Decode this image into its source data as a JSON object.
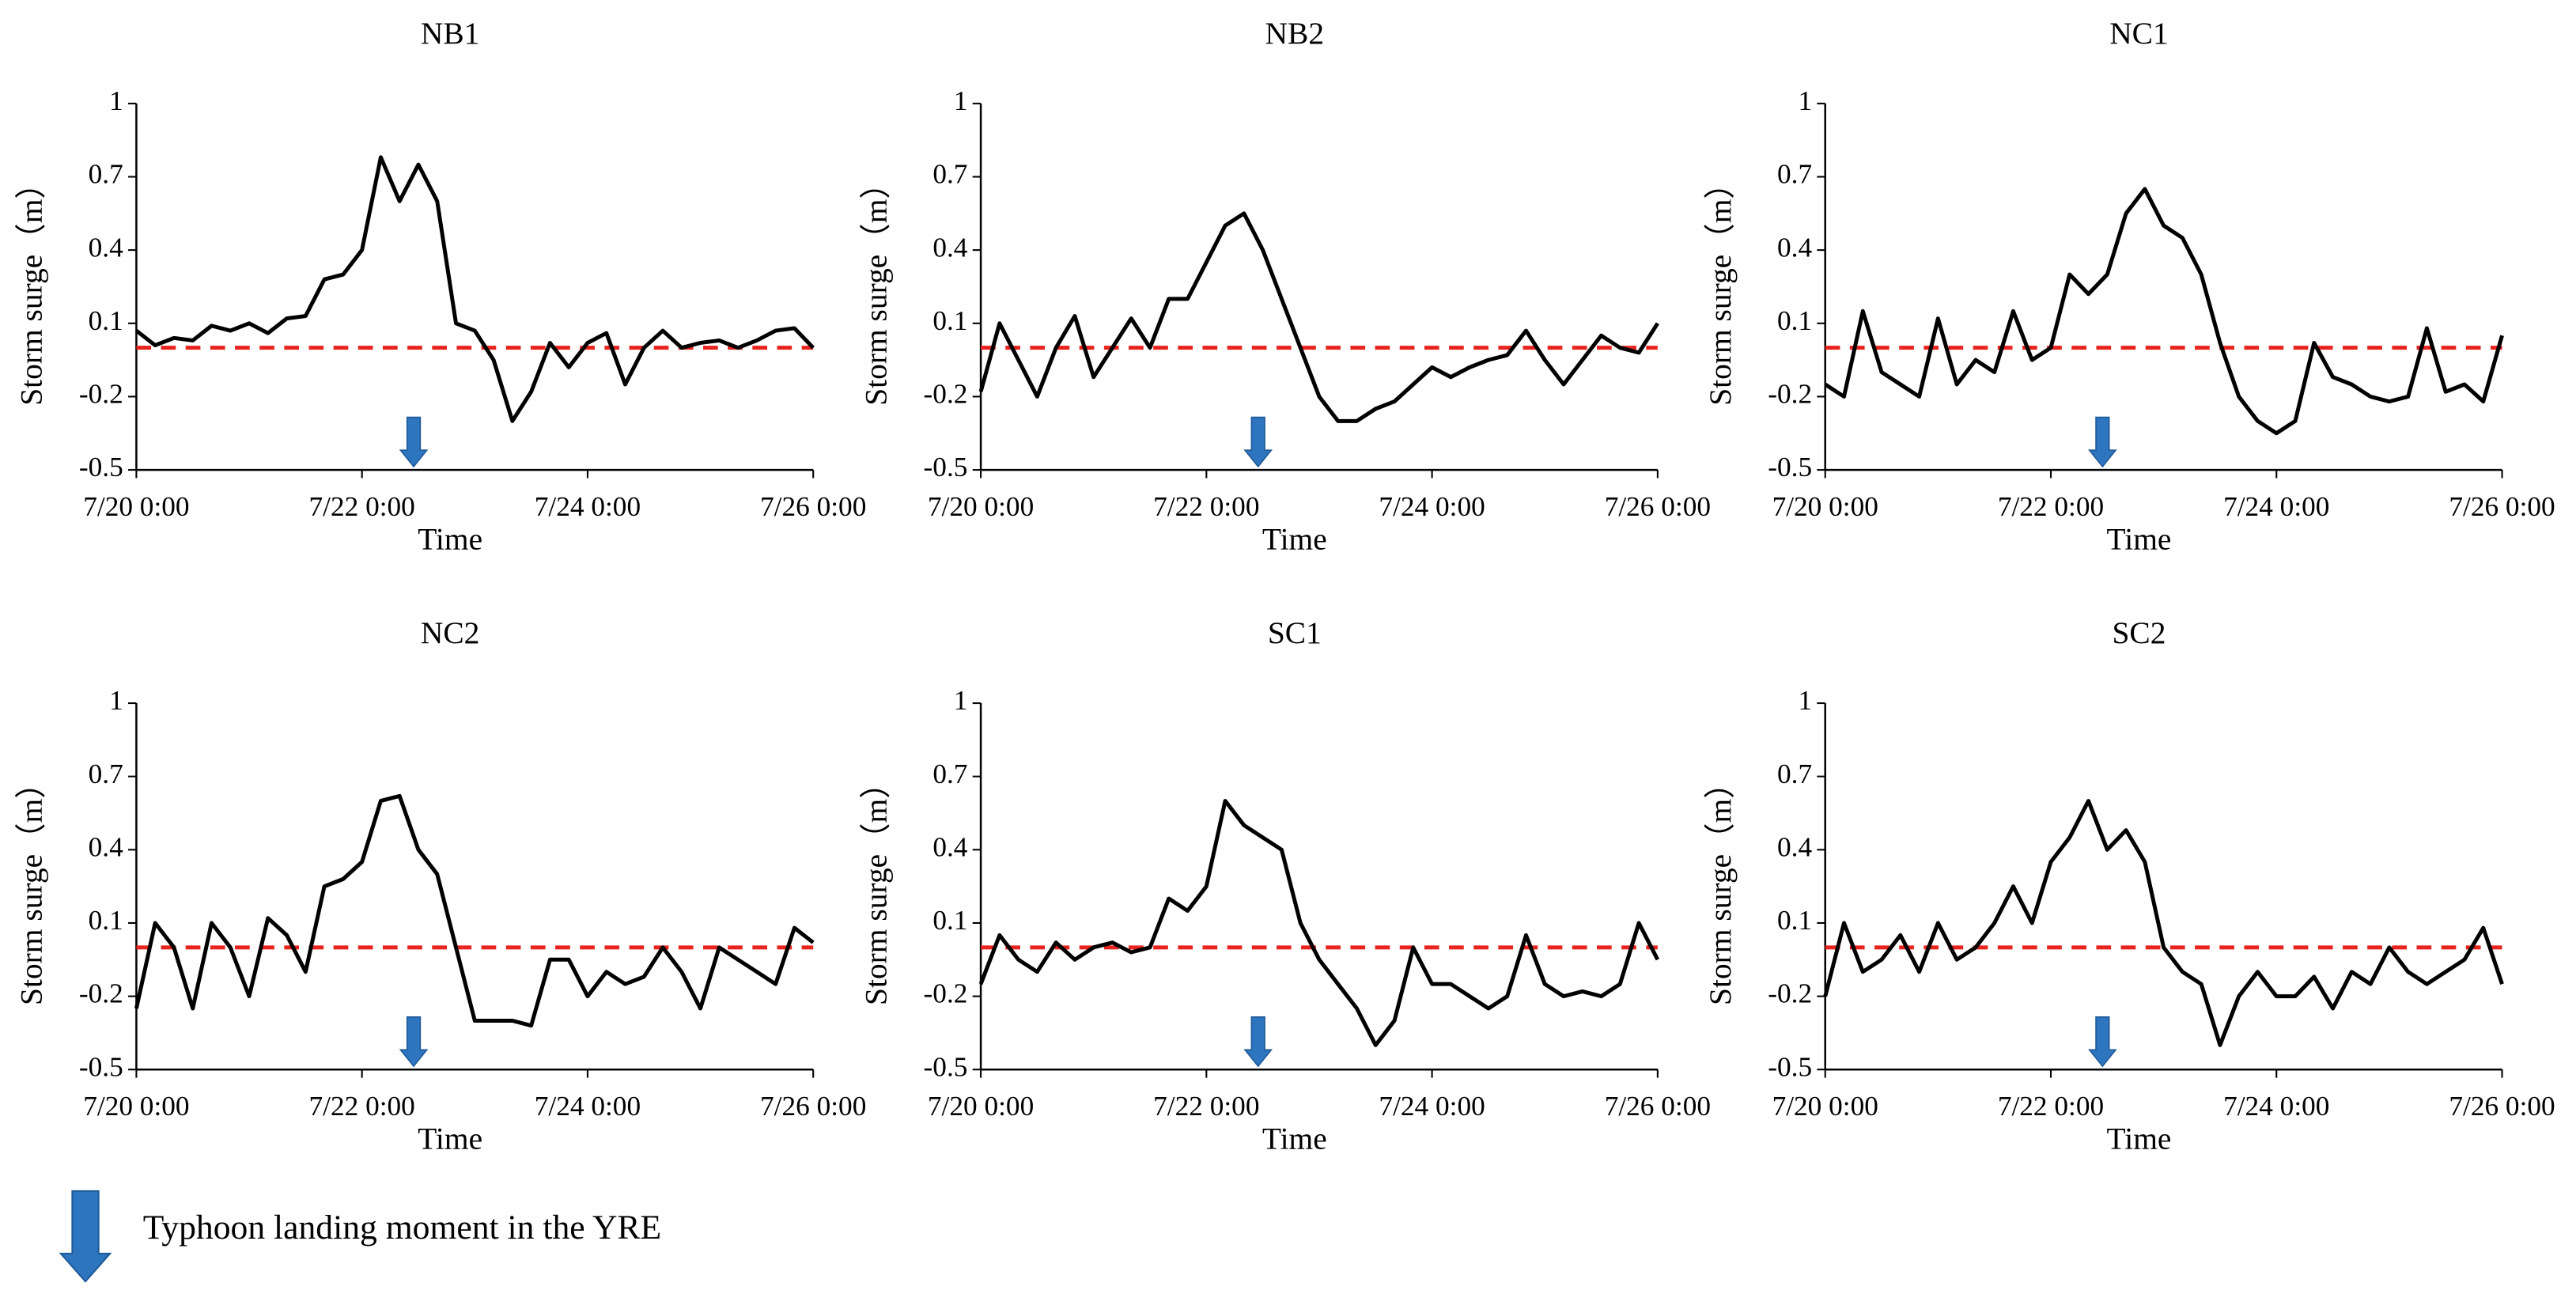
{
  "legend": {
    "label": "Typhoon landing moment in the YRE"
  },
  "chart_data": [
    {
      "type": "line",
      "title": "NB1",
      "x_label": "Time",
      "y_label": "Storm surge（m）",
      "xlim": [
        0,
        144
      ],
      "xticks": [
        {
          "value": 0,
          "label": "7/20 0:00"
        },
        {
          "value": 48,
          "label": "7/22 0:00"
        },
        {
          "value": 96,
          "label": "7/24 0:00"
        },
        {
          "value": 144,
          "label": "7/26 0:00"
        }
      ],
      "ylim": [
        -0.5,
        1
      ],
      "yticks": [
        -0.5,
        -0.2,
        0.1,
        0.4,
        0.7,
        1
      ],
      "reference_y": 0,
      "reference_color": "#e8231e",
      "arrow_x": 59,
      "arrow_color": "#2e75c0",
      "series": [
        {
          "name": "NB1",
          "color": "#000000",
          "x": [
            0,
            4,
            8,
            12,
            16,
            20,
            24,
            28,
            32,
            36,
            40,
            44,
            48,
            52,
            56,
            60,
            64,
            68,
            72,
            76,
            80,
            84,
            88,
            92,
            96,
            100,
            104,
            108,
            112,
            116,
            120,
            124,
            128,
            132,
            136,
            140,
            144
          ],
          "values": [
            0.07,
            0.01,
            0.04,
            0.03,
            0.09,
            0.07,
            0.1,
            0.06,
            0.12,
            0.13,
            0.28,
            0.3,
            0.4,
            0.78,
            0.6,
            0.75,
            0.6,
            0.1,
            0.07,
            -0.05,
            -0.3,
            -0.18,
            0.02,
            -0.08,
            0.02,
            0.06,
            -0.15,
            0.0,
            0.07,
            0.0,
            0.02,
            0.03,
            0.0,
            0.03,
            0.07,
            0.08,
            0.0
          ]
        }
      ]
    },
    {
      "type": "line",
      "title": "NB2",
      "x_label": "Time",
      "y_label": "Storm surge（m）",
      "xlim": [
        0,
        144
      ],
      "xticks": [
        {
          "value": 0,
          "label": "7/20 0:00"
        },
        {
          "value": 48,
          "label": "7/22 0:00"
        },
        {
          "value": 96,
          "label": "7/24 0:00"
        },
        {
          "value": 144,
          "label": "7/26 0:00"
        }
      ],
      "ylim": [
        -0.5,
        1
      ],
      "yticks": [
        -0.5,
        -0.2,
        0.1,
        0.4,
        0.7,
        1
      ],
      "reference_y": 0,
      "reference_color": "#e8231e",
      "arrow_x": 59,
      "arrow_color": "#2e75c0",
      "series": [
        {
          "name": "NB2",
          "color": "#000000",
          "x": [
            0,
            4,
            8,
            12,
            16,
            20,
            24,
            28,
            32,
            36,
            40,
            44,
            48,
            52,
            56,
            60,
            64,
            68,
            72,
            76,
            80,
            84,
            88,
            92,
            96,
            100,
            104,
            108,
            112,
            116,
            120,
            124,
            128,
            132,
            136,
            140,
            144
          ],
          "values": [
            -0.18,
            0.1,
            -0.05,
            -0.2,
            0.0,
            0.13,
            -0.12,
            0.0,
            0.12,
            0.0,
            0.2,
            0.2,
            0.35,
            0.5,
            0.55,
            0.4,
            0.2,
            0.0,
            -0.2,
            -0.3,
            -0.3,
            -0.25,
            -0.22,
            -0.15,
            -0.08,
            -0.12,
            -0.08,
            -0.05,
            -0.03,
            0.07,
            -0.05,
            -0.15,
            -0.05,
            0.05,
            0.0,
            -0.02,
            0.1
          ]
        }
      ]
    },
    {
      "type": "line",
      "title": "NC1",
      "x_label": "Time",
      "y_label": "Storm surge（m）",
      "xlim": [
        0,
        144
      ],
      "xticks": [
        {
          "value": 0,
          "label": "7/20 0:00"
        },
        {
          "value": 48,
          "label": "7/22 0:00"
        },
        {
          "value": 96,
          "label": "7/24 0:00"
        },
        {
          "value": 144,
          "label": "7/26 0:00"
        }
      ],
      "ylim": [
        -0.5,
        1
      ],
      "yticks": [
        -0.5,
        -0.2,
        0.1,
        0.4,
        0.7,
        1
      ],
      "reference_y": 0,
      "reference_color": "#e8231e",
      "arrow_x": 59,
      "arrow_color": "#2e75c0",
      "series": [
        {
          "name": "NC1",
          "color": "#000000",
          "x": [
            0,
            4,
            8,
            12,
            16,
            20,
            24,
            28,
            32,
            36,
            40,
            44,
            48,
            52,
            56,
            60,
            64,
            68,
            72,
            76,
            80,
            84,
            88,
            92,
            96,
            100,
            104,
            108,
            112,
            116,
            120,
            124,
            128,
            132,
            136,
            140,
            144
          ],
          "values": [
            -0.15,
            -0.2,
            0.15,
            -0.1,
            -0.15,
            -0.2,
            0.12,
            -0.15,
            -0.05,
            -0.1,
            0.15,
            -0.05,
            0.0,
            0.3,
            0.22,
            0.3,
            0.55,
            0.65,
            0.5,
            0.45,
            0.3,
            0.02,
            -0.2,
            -0.3,
            -0.35,
            -0.3,
            0.02,
            -0.12,
            -0.15,
            -0.2,
            -0.22,
            -0.2,
            0.08,
            -0.18,
            -0.15,
            -0.22,
            0.05
          ]
        }
      ]
    },
    {
      "type": "line",
      "title": "NC2",
      "x_label": "Time",
      "y_label": "Storm surge（m）",
      "xlim": [
        0,
        144
      ],
      "xticks": [
        {
          "value": 0,
          "label": "7/20 0:00"
        },
        {
          "value": 48,
          "label": "7/22 0:00"
        },
        {
          "value": 96,
          "label": "7/24 0:00"
        },
        {
          "value": 144,
          "label": "7/26 0:00"
        }
      ],
      "ylim": [
        -0.5,
        1
      ],
      "yticks": [
        -0.5,
        -0.2,
        0.1,
        0.4,
        0.7,
        1
      ],
      "reference_y": 0,
      "reference_color": "#e8231e",
      "arrow_x": 59,
      "arrow_color": "#2e75c0",
      "series": [
        {
          "name": "NC2",
          "color": "#000000",
          "x": [
            0,
            4,
            8,
            12,
            16,
            20,
            24,
            28,
            32,
            36,
            40,
            44,
            48,
            52,
            56,
            60,
            64,
            68,
            72,
            76,
            80,
            84,
            88,
            92,
            96,
            100,
            104,
            108,
            112,
            116,
            120,
            124,
            128,
            132,
            136,
            140,
            144
          ],
          "values": [
            -0.25,
            0.1,
            0.0,
            -0.25,
            0.1,
            0.0,
            -0.2,
            0.12,
            0.05,
            -0.1,
            0.25,
            0.28,
            0.35,
            0.6,
            0.62,
            0.4,
            0.3,
            0.0,
            -0.3,
            -0.3,
            -0.3,
            -0.32,
            -0.05,
            -0.05,
            -0.2,
            -0.1,
            -0.15,
            -0.12,
            0.0,
            -0.1,
            -0.25,
            0.0,
            -0.05,
            -0.1,
            -0.15,
            0.08,
            0.02
          ]
        }
      ]
    },
    {
      "type": "line",
      "title": "SC1",
      "x_label": "Time",
      "y_label": "Storm surge（m）",
      "xlim": [
        0,
        144
      ],
      "xticks": [
        {
          "value": 0,
          "label": "7/20 0:00"
        },
        {
          "value": 48,
          "label": "7/22 0:00"
        },
        {
          "value": 96,
          "label": "7/24 0:00"
        },
        {
          "value": 144,
          "label": "7/26 0:00"
        }
      ],
      "ylim": [
        -0.5,
        1
      ],
      "yticks": [
        -0.5,
        -0.2,
        0.1,
        0.4,
        0.7,
        1
      ],
      "reference_y": 0,
      "reference_color": "#e8231e",
      "arrow_x": 59,
      "arrow_color": "#2e75c0",
      "series": [
        {
          "name": "SC1",
          "color": "#000000",
          "x": [
            0,
            4,
            8,
            12,
            16,
            20,
            24,
            28,
            32,
            36,
            40,
            44,
            48,
            52,
            56,
            60,
            64,
            68,
            72,
            76,
            80,
            84,
            88,
            92,
            96,
            100,
            104,
            108,
            112,
            116,
            120,
            124,
            128,
            132,
            136,
            140,
            144
          ],
          "values": [
            -0.15,
            0.05,
            -0.05,
            -0.1,
            0.02,
            -0.05,
            0.0,
            0.02,
            -0.02,
            0.0,
            0.2,
            0.15,
            0.25,
            0.6,
            0.5,
            0.45,
            0.4,
            0.1,
            -0.05,
            -0.15,
            -0.25,
            -0.4,
            -0.3,
            0.0,
            -0.15,
            -0.15,
            -0.2,
            -0.25,
            -0.2,
            0.05,
            -0.15,
            -0.2,
            -0.18,
            -0.2,
            -0.15,
            0.1,
            -0.05
          ]
        }
      ]
    },
    {
      "type": "line",
      "title": "SC2",
      "x_label": "Time",
      "y_label": "Storm surge（m）",
      "xlim": [
        0,
        144
      ],
      "xticks": [
        {
          "value": 0,
          "label": "7/20 0:00"
        },
        {
          "value": 48,
          "label": "7/22 0:00"
        },
        {
          "value": 96,
          "label": "7/24 0:00"
        },
        {
          "value": 144,
          "label": "7/26 0:00"
        }
      ],
      "ylim": [
        -0.5,
        1
      ],
      "yticks": [
        -0.5,
        -0.2,
        0.1,
        0.4,
        0.7,
        1
      ],
      "reference_y": 0,
      "reference_color": "#e8231e",
      "arrow_x": 59,
      "arrow_color": "#2e75c0",
      "series": [
        {
          "name": "SC2",
          "color": "#000000",
          "x": [
            0,
            4,
            8,
            12,
            16,
            20,
            24,
            28,
            32,
            36,
            40,
            44,
            48,
            52,
            56,
            60,
            64,
            68,
            72,
            76,
            80,
            84,
            88,
            92,
            96,
            100,
            104,
            108,
            112,
            116,
            120,
            124,
            128,
            132,
            136,
            140,
            144
          ],
          "values": [
            -0.2,
            0.1,
            -0.1,
            -0.05,
            0.05,
            -0.1,
            0.1,
            -0.05,
            0.0,
            0.1,
            0.25,
            0.1,
            0.35,
            0.45,
            0.6,
            0.4,
            0.48,
            0.35,
            0.0,
            -0.1,
            -0.15,
            -0.4,
            -0.2,
            -0.1,
            -0.2,
            -0.2,
            -0.12,
            -0.25,
            -0.1,
            -0.15,
            0.0,
            -0.1,
            -0.15,
            -0.1,
            -0.05,
            0.08,
            -0.15
          ]
        }
      ]
    }
  ]
}
